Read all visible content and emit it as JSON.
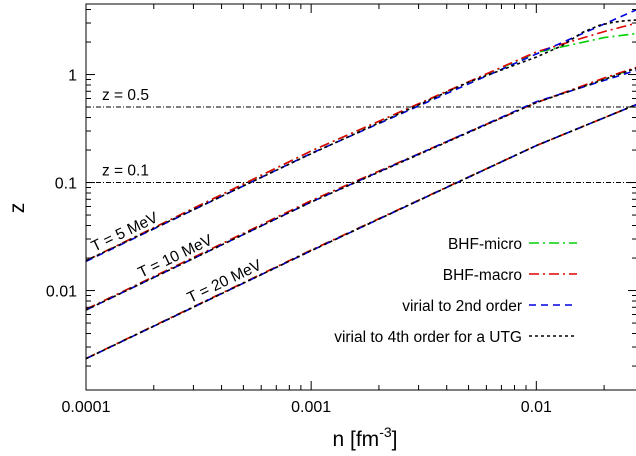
{
  "chart_data": {
    "type": "line",
    "xscale": "log",
    "yscale": "log",
    "xlim": [
      0.0001,
      0.028
    ],
    "ylim": [
      0.0012,
      4.5
    ],
    "xlabel": "n [fm",
    "xlabel_sup": "-3",
    "xlabel_end": "]",
    "ylabel": "z",
    "xticks": [
      {
        "value": 0.0001,
        "label": "0.0001"
      },
      {
        "value": 0.001,
        "label": "0.001"
      },
      {
        "value": 0.01,
        "label": "0.01"
      }
    ],
    "yticks": [
      {
        "value": 0.01,
        "label": "0.01"
      },
      {
        "value": 0.1,
        "label": "0.1"
      },
      {
        "value": 1,
        "label": "1"
      }
    ],
    "hlines": [
      {
        "y": 0.5,
        "label": "z = 0.5"
      },
      {
        "y": 0.1,
        "label": "z = 0.1"
      }
    ],
    "curve_labels": [
      {
        "text": "T = 5 MeV",
        "at_x": 0.000155,
        "curve": "T5"
      },
      {
        "text": "T = 10 MeV",
        "at_x": 0.00026,
        "curve": "T10"
      },
      {
        "text": "T = 20 MeV",
        "at_x": 0.00043,
        "curve": "T20"
      }
    ],
    "legend_position": "right, middle",
    "series": [
      {
        "name": "BHF-micro",
        "color": "#00d000",
        "dash": "10,4,2,4",
        "curves": {
          "T5": {
            "x": [
              0.0001,
              0.001,
              0.01,
              0.02,
              0.028
            ],
            "y": [
              0.0189,
              0.196,
              1.6,
              2.2,
              2.4
            ]
          },
          "T10": {
            "x": [
              0.0001,
              0.001,
              0.01,
              0.02,
              0.028
            ],
            "y": [
              0.0067,
              0.068,
              0.55,
              0.92,
              1.15
            ]
          },
          "T20": {
            "x": [
              0.0001,
              0.001,
              0.01,
              0.028
            ],
            "y": [
              0.00235,
              0.0237,
              0.22,
              0.53
            ]
          }
        }
      },
      {
        "name": "BHF-macro",
        "color": "#e00000",
        "dash": "10,4,2,4",
        "curves": {
          "T5": {
            "x": [
              0.0001,
              0.001,
              0.01,
              0.02,
              0.028
            ],
            "y": [
              0.0189,
              0.196,
              1.62,
              2.5,
              3.0
            ]
          },
          "T10": {
            "x": [
              0.0001,
              0.001,
              0.01,
              0.02,
              0.028
            ],
            "y": [
              0.0067,
              0.068,
              0.55,
              0.93,
              1.17
            ]
          },
          "T20": {
            "x": [
              0.0001,
              0.001,
              0.01,
              0.028
            ],
            "y": [
              0.00235,
              0.0237,
              0.22,
              0.53
            ]
          }
        }
      },
      {
        "name": "virial to 2nd order",
        "color": "#0000e0",
        "dash": "7,5",
        "curves": {
          "T5": {
            "x": [
              0.0001,
              0.001,
              0.01,
              0.028
            ],
            "y": [
              0.0186,
              0.186,
              1.55,
              4.0
            ]
          },
          "T10": {
            "x": [
              0.0001,
              0.001,
              0.01,
              0.028
            ],
            "y": [
              0.0066,
              0.066,
              0.56,
              1.1
            ]
          },
          "T20": {
            "x": [
              0.0001,
              0.001,
              0.01,
              0.028
            ],
            "y": [
              0.00234,
              0.0234,
              0.22,
              0.53
            ]
          }
        }
      },
      {
        "name": "virial to 4th order for a UTG",
        "color": "#000000",
        "dash": "3,3",
        "curves": {
          "T5": {
            "x": [
              0.0001,
              0.001,
              0.005,
              0.01,
              0.013,
              0.016,
              0.019,
              0.022,
              0.025,
              0.028
            ],
            "y": [
              0.0189,
              0.185,
              0.85,
              1.45,
              1.85,
              2.45,
              2.85,
              3.05,
              3.15,
              3.2
            ]
          },
          "T10": {
            "x": [
              0.0001,
              0.001,
              0.01,
              0.02,
              0.028
            ],
            "y": [
              0.0066,
              0.066,
              0.55,
              0.9,
              1.15
            ]
          },
          "T20": {
            "x": [
              0.0001,
              0.001,
              0.01,
              0.028
            ],
            "y": [
              0.00234,
              0.0234,
              0.22,
              0.53
            ]
          }
        }
      }
    ]
  }
}
